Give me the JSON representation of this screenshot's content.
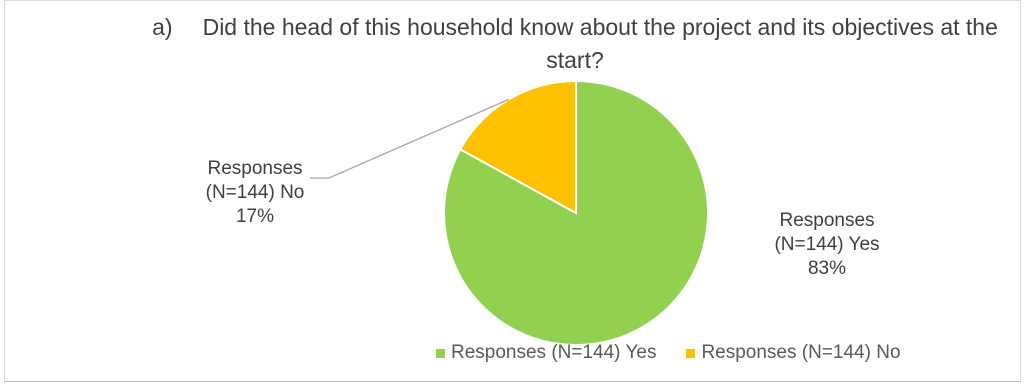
{
  "chart_data": {
    "type": "pie",
    "title_prefix": "a)",
    "title": "Did the head of this household know about the project and its objectives at the start?",
    "slices": [
      {
        "name": "Responses (N=144) Yes",
        "label_line1": "Responses",
        "label_line2": "(N=144) Yes",
        "percent_label": "83%",
        "value": 83,
        "color": "#92d050"
      },
      {
        "name": "Responses (N=144) No",
        "label_line1": "Responses",
        "label_line2": "(N=144) No",
        "percent_label": "17%",
        "value": 17,
        "color": "#ffc000"
      }
    ],
    "legend": {
      "position": "bottom"
    }
  }
}
